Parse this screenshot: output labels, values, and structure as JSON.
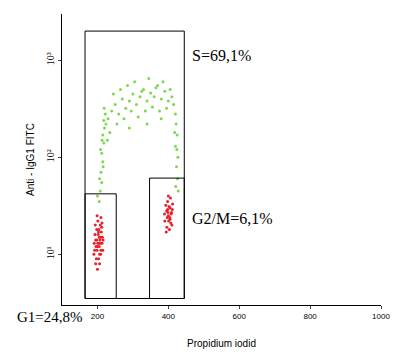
{
  "chart_data": {
    "type": "scatter",
    "x_label": "Propidium iodid",
    "y_label": "Anti - IgG1 FITC",
    "log": "y",
    "grid": false,
    "marker": "dot",
    "xlim": [
      100,
      1000
    ],
    "xticks": [
      200,
      400,
      600,
      800,
      1000
    ],
    "ylim": [
      3,
      3000
    ],
    "yticks": [
      {
        "value": 10,
        "label": "10¹"
      },
      {
        "value": 100,
        "label": "10²"
      },
      {
        "value": 1000,
        "label": "10³"
      }
    ],
    "series": [
      {
        "color": "#e8202c",
        "x": [
          190,
          195,
          200,
          205,
          210,
          198,
          203,
          208,
          213,
          193,
          201,
          206,
          211,
          196,
          204,
          209,
          199,
          214,
          192,
          207,
          202,
          197,
          212,
          205,
          200,
          215,
          194,
          208,
          203,
          198,
          210,
          206,
          201,
          195,
          213,
          204,
          209,
          199,
          216,
          191
        ],
        "values": [
          10,
          14,
          12,
          15,
          11,
          18,
          9,
          20,
          13,
          16,
          22,
          8,
          17,
          12,
          13,
          10,
          25,
          15,
          11,
          14,
          16,
          9,
          19,
          12,
          7,
          11,
          20,
          13,
          17,
          14,
          24,
          10,
          13,
          8,
          21,
          18,
          15,
          11,
          14,
          13
        ]
      },
      {
        "color": "#e8202c",
        "x": [
          390,
          395,
          400,
          405,
          410,
          398,
          403,
          408,
          393,
          401,
          406,
          396,
          411,
          399,
          404,
          389,
          402,
          407,
          397,
          412,
          394,
          400,
          405,
          398,
          409
        ],
        "values": [
          22,
          28,
          25,
          30,
          20,
          35,
          18,
          26,
          32,
          22,
          38,
          19,
          29,
          27,
          24,
          26,
          31,
          21,
          24,
          33,
          17,
          40,
          23,
          29,
          27
        ]
      },
      {
        "color": "#7fd650",
        "x": [
          205,
          208,
          212,
          210,
          215,
          212,
          218,
          215,
          220,
          218,
          222,
          200,
          206,
          216,
          209,
          213,
          224,
          219,
          230,
          240,
          250,
          260,
          270,
          280,
          290,
          300,
          310,
          320,
          330,
          340,
          350,
          360,
          370,
          380,
          390,
          400,
          410,
          235,
          255,
          275,
          295,
          315,
          335,
          355,
          375,
          395,
          245,
          265,
          285,
          305,
          325,
          345,
          365,
          385,
          405,
          415,
          420,
          422,
          425,
          420,
          427,
          423,
          426,
          421,
          428,
          424,
          418,
          228,
          290,
          340,
          380
        ],
        "values": [
          35,
          45,
          55,
          70,
          90,
          110,
          140,
          170,
          200,
          240,
          280,
          40,
          60,
          80,
          120,
          150,
          220,
          320,
          250,
          300,
          350,
          280,
          400,
          320,
          380,
          450,
          350,
          420,
          500,
          380,
          460,
          420,
          550,
          400,
          480,
          380,
          420,
          180,
          220,
          250,
          300,
          260,
          300,
          330,
          300,
          320,
          450,
          500,
          550,
          600,
          480,
          650,
          520,
          600,
          500,
          350,
          280,
          220,
          170,
          130,
          100,
          80,
          60,
          50,
          45,
          120,
          180,
          150,
          200,
          220,
          250
        ]
      }
    ],
    "gates": [
      {
        "label": "S=69,1%",
        "x": [
          165,
          445
        ],
        "y": [
          3.5,
          2000
        ]
      },
      {
        "label": "G1=24,8%",
        "x": [
          165,
          253
        ],
        "y": [
          3.5,
          42
        ]
      },
      {
        "label": "G2/M=6,1%",
        "x": [
          347,
          445
        ],
        "y": [
          3.5,
          61
        ]
      }
    ]
  }
}
